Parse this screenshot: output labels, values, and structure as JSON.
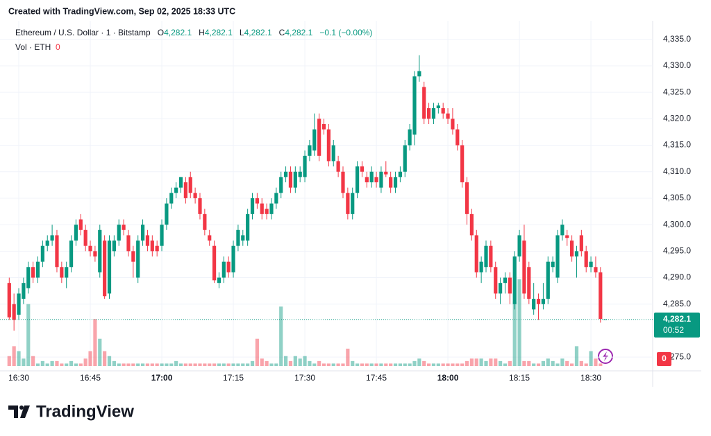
{
  "header": "Created with TradingView.com, Sep 02, 2025 18:33 UTC",
  "footer": "TradingView",
  "chart_data": {
    "type": "candlestick",
    "legend": {
      "symbol": "Ethereum / U.S. Dollar · 1 · Bitstamp",
      "o": "O",
      "open": "4,282.1",
      "h": "H",
      "high": "4,282.1",
      "l": "L",
      "low": "4,282.1",
      "c": "C",
      "close": "4,282.1",
      "change": "−0.1 (−0.00%)",
      "volume_title": "Vol · ETH"
    },
    "up_color": "#089981",
    "down_color": "#f23645",
    "categories": [
      null,
      null,
      "16:30",
      null,
      null,
      null,
      null,
      null,
      null,
      null,
      null,
      null,
      null,
      null,
      null,
      null,
      null,
      "16:45",
      null,
      null,
      null,
      null,
      null,
      null,
      null,
      null,
      null,
      null,
      null,
      null,
      null,
      null,
      "17:00",
      null,
      null,
      null,
      null,
      null,
      null,
      null,
      null,
      null,
      null,
      null,
      null,
      null,
      null,
      "17:15",
      null,
      null,
      null,
      null,
      null,
      null,
      null,
      null,
      null,
      null,
      null,
      null,
      null,
      null,
      "17:30",
      null,
      null,
      null,
      null,
      null,
      null,
      null,
      null,
      null,
      null,
      null,
      null,
      null,
      null,
      "17:45",
      null,
      null,
      null,
      null,
      null,
      null,
      null,
      null,
      null,
      null,
      null,
      null,
      null,
      null,
      "18:00",
      null,
      null,
      null,
      null,
      null,
      null,
      null,
      null,
      null,
      null,
      null,
      null,
      null,
      null,
      "18:15",
      null,
      null,
      null,
      null,
      null,
      null,
      null,
      null,
      null,
      null,
      null,
      null,
      null,
      null,
      "18:30",
      null,
      null,
      null
    ],
    "candles": [
      [
        4289,
        4290,
        4282,
        4282.5
      ],
      [
        4285,
        4287,
        4280,
        4282
      ],
      [
        4283,
        4288,
        4282,
        4287
      ],
      [
        4286,
        4290,
        4285,
        4289
      ],
      [
        4288,
        4293,
        4287,
        4292
      ],
      [
        4292,
        4293,
        4289,
        4290
      ],
      [
        4290,
        4294,
        4289,
        4293
      ],
      [
        4293,
        4297,
        4292,
        4296
      ],
      [
        4296,
        4298,
        4295,
        4297
      ],
      [
        4297,
        4300,
        4296,
        4298
      ],
      [
        4298,
        4299,
        4291,
        4292
      ],
      [
        4292,
        4293,
        4289,
        4290
      ],
      [
        4290,
        4293,
        4288,
        4292
      ],
      [
        4292,
        4298,
        4291,
        4297
      ],
      [
        4297,
        4301,
        4296,
        4300
      ],
      [
        4301,
        4302,
        4298,
        4299
      ],
      [
        4299,
        4300,
        4295,
        4296
      ],
      [
        4296,
        4297,
        4294,
        4295
      ],
      [
        4295,
        4296,
        4293,
        4294
      ],
      [
        4291,
        4300,
        4290,
        4299
      ],
      [
        4297,
        4298,
        4286,
        4286.5
      ],
      [
        4287,
        4298,
        4286,
        4297
      ],
      [
        4295,
        4298,
        4294,
        4297
      ],
      [
        4297,
        4301,
        4296,
        4300
      ],
      [
        4300,
        4301,
        4298,
        4299
      ],
      [
        4298,
        4299,
        4294,
        4295
      ],
      [
        4295,
        4296,
        4290,
        4293
      ],
      [
        4290,
        4298,
        4289,
        4297
      ],
      [
        4297,
        4301,
        4296,
        4300
      ],
      [
        4298,
        4299,
        4295,
        4296
      ],
      [
        4297,
        4298,
        4294,
        4295
      ],
      [
        4296,
        4297,
        4294,
        4295
      ],
      [
        4296,
        4301,
        4295,
        4300
      ],
      [
        4300,
        4305,
        4299,
        4304
      ],
      [
        4304,
        4307,
        4303,
        4306
      ],
      [
        4306,
        4308,
        4305,
        4307
      ],
      [
        4307,
        4309,
        4306,
        4309
      ],
      [
        4308,
        4309,
        4304,
        4305
      ],
      [
        4309,
        4310,
        4305,
        4306
      ],
      [
        4306,
        4307,
        4304,
        4305
      ],
      [
        4305,
        4306,
        4301,
        4302
      ],
      [
        4302,
        4303,
        4298,
        4299
      ],
      [
        4298,
        4299,
        4296,
        4297
      ],
      [
        4296,
        4297,
        4289,
        4289.5
      ],
      [
        4289,
        4291,
        4288,
        4290
      ],
      [
        4290,
        4294,
        4289,
        4293
      ],
      [
        4293,
        4294,
        4290,
        4291
      ],
      [
        4291,
        4297,
        4290,
        4296
      ],
      [
        4296,
        4300,
        4295,
        4299
      ],
      [
        4297,
        4299,
        4296,
        4298
      ],
      [
        4297,
        4303,
        4296,
        4302
      ],
      [
        4302,
        4306,
        4301,
        4305
      ],
      [
        4305,
        4306,
        4303,
        4304
      ],
      [
        4304,
        4305,
        4301,
        4302
      ],
      [
        4303,
        4304,
        4301,
        4302
      ],
      [
        4302,
        4305,
        4301,
        4304
      ],
      [
        4304,
        4307,
        4303,
        4306
      ],
      [
        4306,
        4310,
        4305,
        4309
      ],
      [
        4309,
        4311,
        4308,
        4310
      ],
      [
        4310,
        4311,
        4306,
        4307
      ],
      [
        4307,
        4311,
        4306,
        4310
      ],
      [
        4309,
        4311,
        4308,
        4310
      ],
      [
        4309,
        4314,
        4308,
        4313
      ],
      [
        4313,
        4316,
        4312,
        4315
      ],
      [
        4314,
        4321,
        4313,
        4318
      ],
      [
        4320,
        4321,
        4312,
        4313
      ],
      [
        4319,
        4320,
        4317,
        4318
      ],
      [
        4318,
        4319,
        4311,
        4312
      ],
      [
        4312,
        4316,
        4311,
        4315
      ],
      [
        4312,
        4313,
        4309,
        4310
      ],
      [
        4310,
        4311,
        4305,
        4306
      ],
      [
        4306,
        4307,
        4301,
        4302
      ],
      [
        4302,
        4307,
        4301,
        4306
      ],
      [
        4306,
        4312,
        4305,
        4311
      ],
      [
        4311,
        4312,
        4309,
        4310
      ],
      [
        4309,
        4310,
        4307,
        4308
      ],
      [
        4308,
        4311,
        4307,
        4310
      ],
      [
        4309,
        4310,
        4307,
        4308
      ],
      [
        4307,
        4311,
        4306,
        4310
      ],
      [
        4310,
        4312,
        4309,
        4309.5
      ],
      [
        4309,
        4310,
        4306,
        4307
      ],
      [
        4307,
        4310,
        4306,
        4309
      ],
      [
        4309,
        4311,
        4308,
        4310
      ],
      [
        4310,
        4316,
        4309,
        4315
      ],
      [
        4315,
        4319,
        4314,
        4318
      ],
      [
        4317,
        4329,
        4315,
        4328
      ],
      [
        4328,
        4332,
        4327,
        4329
      ],
      [
        4326,
        4327,
        4319,
        4320
      ],
      [
        4322,
        4323,
        4319,
        4320
      ],
      [
        4320,
        4323,
        4319,
        4322
      ],
      [
        4322,
        4323,
        4321,
        4322.5
      ],
      [
        4322,
        4323,
        4320,
        4321
      ],
      [
        4321,
        4322,
        4319,
        4320
      ],
      [
        4320,
        4322,
        4317,
        4318
      ],
      [
        4318,
        4319,
        4314,
        4315
      ],
      [
        4315,
        4316,
        4307,
        4308
      ],
      [
        4308,
        4309,
        4300,
        4302
      ],
      [
        4302,
        4303,
        4297,
        4298
      ],
      [
        4298,
        4299,
        4290,
        4291
      ],
      [
        4291,
        4294,
        4289,
        4293
      ],
      [
        4292,
        4297,
        4291,
        4296
      ],
      [
        4296,
        4297,
        4291,
        4292
      ],
      [
        4292,
        4293,
        4286,
        4287
      ],
      [
        4287,
        4290,
        4285,
        4289
      ],
      [
        4289,
        4291,
        4287,
        4290
      ],
      [
        4290,
        4291,
        4285,
        4287
      ],
      [
        4285,
        4295,
        4284,
        4294
      ],
      [
        4294,
        4299,
        4293,
        4298
      ],
      [
        4297,
        4300,
        4286,
        4287
      ],
      [
        4292,
        4293,
        4285,
        4286
      ],
      [
        4284,
        4289,
        4283,
        4286
      ],
      [
        4286,
        4287,
        4282,
        4285
      ],
      [
        4285,
        4289,
        4284,
        4286
      ],
      [
        4286,
        4294,
        4285,
        4293
      ],
      [
        4292,
        4294,
        4291,
        4293
      ],
      [
        4290,
        4299,
        4289,
        4298
      ],
      [
        4298,
        4301,
        4297,
        4300
      ],
      [
        4298,
        4299,
        4296,
        4297.5
      ],
      [
        4297,
        4298,
        4293,
        4294
      ],
      [
        4294,
        4296,
        4290,
        4295
      ],
      [
        4298,
        4299,
        4294,
        4295
      ],
      [
        4295,
        4296,
        4291,
        4292
      ],
      [
        4292,
        4294,
        4291,
        4293
      ],
      [
        4292,
        4294,
        4290,
        4291
      ],
      [
        4291,
        4292,
        4281.5,
        4282.2
      ],
      [
        4282.1,
        4282.1,
        4282.1,
        4282.1
      ]
    ],
    "volume": [
      4,
      8,
      6,
      3,
      25,
      4,
      1,
      2,
      1,
      2,
      2,
      1,
      1,
      2,
      1,
      1,
      3,
      6,
      19,
      11,
      6,
      4,
      2,
      1,
      1,
      1,
      1,
      1,
      1,
      1,
      1,
      1,
      1,
      1,
      1,
      2,
      1,
      1,
      1,
      1,
      1,
      1,
      1,
      1,
      1,
      1,
      1,
      1,
      1,
      1,
      1,
      2,
      11,
      3,
      2,
      1,
      1,
      24,
      4,
      2,
      4,
      3,
      4,
      2,
      1,
      2,
      1,
      1,
      1,
      1,
      1,
      7,
      2,
      1,
      1,
      1,
      1,
      1,
      1,
      1,
      1,
      1,
      1,
      1,
      1,
      2,
      3,
      2,
      1,
      1,
      1,
      1,
      1,
      1,
      1,
      1,
      2,
      3,
      3,
      3,
      2,
      3,
      3,
      2,
      1,
      2,
      26,
      35,
      2,
      2,
      1,
      1,
      2,
      3,
      2,
      1,
      3,
      2,
      1,
      8,
      2,
      1,
      6,
      3,
      1,
      0
    ],
    "ylim": [
      4272.4,
      4338.5
    ],
    "yticks": [
      {
        "value": 4275,
        "label": "4,275.0"
      },
      {
        "value": 4285,
        "label": "4,285.0"
      },
      {
        "value": 4290,
        "label": "4,290.0"
      },
      {
        "value": 4295,
        "label": "4,295.0"
      },
      {
        "value": 4300,
        "label": "4,300.0"
      },
      {
        "value": 4305,
        "label": "4,305.0"
      },
      {
        "value": 4310,
        "label": "4,310.0"
      },
      {
        "value": 4315,
        "label": "4,315.0"
      },
      {
        "value": 4320,
        "label": "4,320.0"
      },
      {
        "value": 4325,
        "label": "4,325.0"
      },
      {
        "value": 4330,
        "label": "4,330.0"
      },
      {
        "value": 4335,
        "label": "4,335.0"
      }
    ],
    "price_label": {
      "value": 4282.1,
      "label": "4,282.1"
    },
    "countdown": "00:52",
    "grid": true
  }
}
